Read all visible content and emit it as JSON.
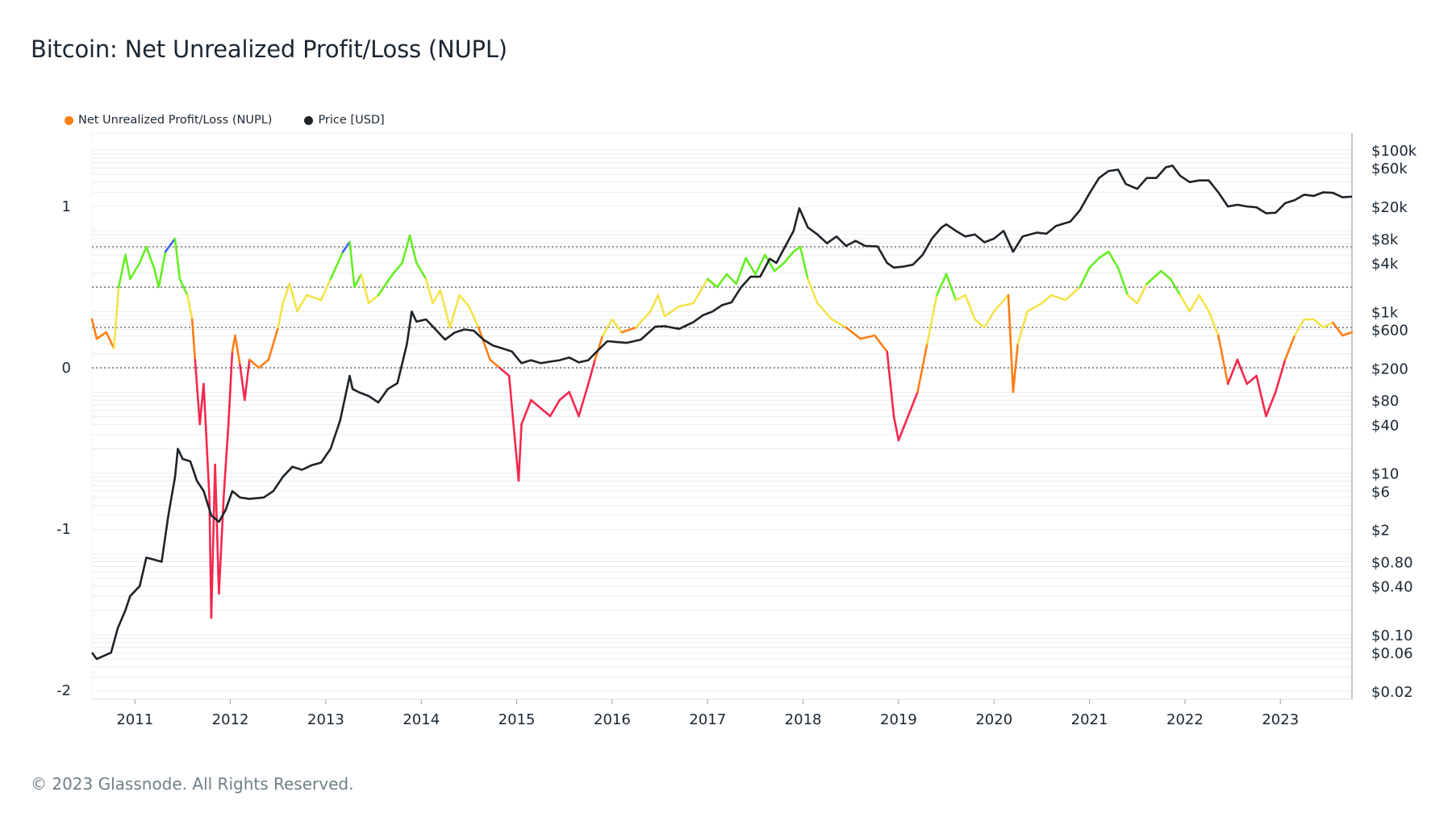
{
  "title": "Bitcoin: Net Unrealized Profit/Loss (NUPL)",
  "footer": "© 2023 Glassnode. All Rights Reserved.",
  "colors": {
    "capitulation": "#f5284d",
    "hope_fear": "#fd7e14",
    "optimism_anxiety": "#f4e34a",
    "belief_denial": "#66ee22",
    "euphoria_greed": "#3a64ec",
    "price": "#1e2328",
    "grid": "#e9ecef",
    "axis": "#9aa3aa"
  },
  "chart_data": {
    "type": "line",
    "title": "Bitcoin: Net Unrealized Profit/Loss (NUPL)",
    "legend": [
      {
        "label": "Net Unrealized Profit/Loss (NUPL)",
        "color": "#fd7e14"
      },
      {
        "label": "Price [USD]",
        "color": "#1e2328"
      }
    ],
    "x_ticks": [
      "2011",
      "2012",
      "2013",
      "2014",
      "2015",
      "2016",
      "2017",
      "2018",
      "2019",
      "2020",
      "2021",
      "2022",
      "2023"
    ],
    "x_range": [
      2010.55,
      2023.75
    ],
    "y_left": {
      "range": [
        -2,
        1.5
      ],
      "ticks": [
        1,
        0,
        -1,
        -2
      ],
      "tick_labels": [
        "1",
        "0",
        "-1",
        "-2"
      ]
    },
    "y_right_log": {
      "ticks": [
        100000,
        60000,
        20000,
        8000,
        4000,
        1000,
        600,
        200,
        80,
        40,
        10,
        6,
        2,
        0.8,
        0.4,
        0.1,
        0.06,
        0.02
      ],
      "tick_labels": [
        "$100k",
        "$60k",
        "$20k",
        "$8k",
        "$4k",
        "$1k",
        "$600",
        "$200",
        "$80",
        "$40",
        "$10",
        "$6",
        "$2",
        "$0.80",
        "$0.40",
        "$0.10",
        "$0.06",
        "$0.02"
      ]
    },
    "zone_thresholds": [
      0,
      0.25,
      0.5,
      0.75
    ],
    "series": [
      {
        "name": "Net Unrealized Profit/Loss (NUPL)",
        "axis": "left",
        "points": [
          [
            2010.55,
            0.3
          ],
          [
            2010.6,
            0.18
          ],
          [
            2010.7,
            0.22
          ],
          [
            2010.78,
            0.12
          ],
          [
            2010.83,
            0.5
          ],
          [
            2010.9,
            0.7
          ],
          [
            2010.95,
            0.55
          ],
          [
            2011.05,
            0.65
          ],
          [
            2011.12,
            0.75
          ],
          [
            2011.2,
            0.62
          ],
          [
            2011.25,
            0.5
          ],
          [
            2011.32,
            0.72
          ],
          [
            2011.42,
            0.8
          ],
          [
            2011.47,
            0.55
          ],
          [
            2011.55,
            0.45
          ],
          [
            2011.6,
            0.3
          ],
          [
            2011.63,
            0.05
          ],
          [
            2011.68,
            -0.35
          ],
          [
            2011.72,
            -0.1
          ],
          [
            2011.78,
            -0.8
          ],
          [
            2011.8,
            -1.55
          ],
          [
            2011.84,
            -0.6
          ],
          [
            2011.88,
            -1.4
          ],
          [
            2011.93,
            -0.8
          ],
          [
            2011.98,
            -0.35
          ],
          [
            2012.02,
            0.1
          ],
          [
            2012.05,
            0.2
          ],
          [
            2012.1,
            0.02
          ],
          [
            2012.15,
            -0.2
          ],
          [
            2012.2,
            0.05
          ],
          [
            2012.3,
            0.0
          ],
          [
            2012.4,
            0.05
          ],
          [
            2012.5,
            0.25
          ],
          [
            2012.55,
            0.4
          ],
          [
            2012.62,
            0.52
          ],
          [
            2012.7,
            0.35
          ],
          [
            2012.8,
            0.45
          ],
          [
            2012.95,
            0.42
          ],
          [
            2013.05,
            0.55
          ],
          [
            2013.18,
            0.72
          ],
          [
            2013.25,
            0.78
          ],
          [
            2013.3,
            0.5
          ],
          [
            2013.37,
            0.58
          ],
          [
            2013.45,
            0.4
          ],
          [
            2013.55,
            0.45
          ],
          [
            2013.7,
            0.58
          ],
          [
            2013.8,
            0.65
          ],
          [
            2013.88,
            0.82
          ],
          [
            2013.95,
            0.65
          ],
          [
            2014.05,
            0.55
          ],
          [
            2014.12,
            0.4
          ],
          [
            2014.2,
            0.48
          ],
          [
            2014.3,
            0.25
          ],
          [
            2014.4,
            0.45
          ],
          [
            2014.5,
            0.38
          ],
          [
            2014.6,
            0.25
          ],
          [
            2014.72,
            0.05
          ],
          [
            2014.82,
            0.0
          ],
          [
            2014.92,
            -0.05
          ],
          [
            2015.02,
            -0.7
          ],
          [
            2015.05,
            -0.35
          ],
          [
            2015.15,
            -0.2
          ],
          [
            2015.25,
            -0.25
          ],
          [
            2015.35,
            -0.3
          ],
          [
            2015.45,
            -0.2
          ],
          [
            2015.55,
            -0.15
          ],
          [
            2015.65,
            -0.3
          ],
          [
            2015.75,
            -0.1
          ],
          [
            2015.82,
            0.05
          ],
          [
            2015.9,
            0.2
          ],
          [
            2016.0,
            0.3
          ],
          [
            2016.1,
            0.22
          ],
          [
            2016.25,
            0.25
          ],
          [
            2016.4,
            0.35
          ],
          [
            2016.48,
            0.45
          ],
          [
            2016.55,
            0.32
          ],
          [
            2016.7,
            0.38
          ],
          [
            2016.85,
            0.4
          ],
          [
            2017.0,
            0.55
          ],
          [
            2017.1,
            0.5
          ],
          [
            2017.2,
            0.58
          ],
          [
            2017.3,
            0.52
          ],
          [
            2017.4,
            0.68
          ],
          [
            2017.5,
            0.58
          ],
          [
            2017.6,
            0.7
          ],
          [
            2017.7,
            0.6
          ],
          [
            2017.8,
            0.65
          ],
          [
            2017.9,
            0.72
          ],
          [
            2017.97,
            0.75
          ],
          [
            2018.05,
            0.55
          ],
          [
            2018.15,
            0.4
          ],
          [
            2018.3,
            0.3
          ],
          [
            2018.45,
            0.25
          ],
          [
            2018.6,
            0.18
          ],
          [
            2018.75,
            0.2
          ],
          [
            2018.88,
            0.1
          ],
          [
            2018.95,
            -0.3
          ],
          [
            2019.0,
            -0.45
          ],
          [
            2019.1,
            -0.3
          ],
          [
            2019.2,
            -0.15
          ],
          [
            2019.3,
            0.15
          ],
          [
            2019.4,
            0.45
          ],
          [
            2019.5,
            0.58
          ],
          [
            2019.6,
            0.42
          ],
          [
            2019.7,
            0.45
          ],
          [
            2019.8,
            0.3
          ],
          [
            2019.9,
            0.25
          ],
          [
            2020.0,
            0.35
          ],
          [
            2020.15,
            0.45
          ],
          [
            2020.2,
            -0.15
          ],
          [
            2020.25,
            0.15
          ],
          [
            2020.35,
            0.35
          ],
          [
            2020.5,
            0.4
          ],
          [
            2020.6,
            0.45
          ],
          [
            2020.75,
            0.42
          ],
          [
            2020.9,
            0.5
          ],
          [
            2021.0,
            0.62
          ],
          [
            2021.1,
            0.68
          ],
          [
            2021.2,
            0.72
          ],
          [
            2021.3,
            0.62
          ],
          [
            2021.4,
            0.45
          ],
          [
            2021.5,
            0.4
          ],
          [
            2021.6,
            0.52
          ],
          [
            2021.75,
            0.6
          ],
          [
            2021.85,
            0.55
          ],
          [
            2021.95,
            0.45
          ],
          [
            2022.05,
            0.35
          ],
          [
            2022.15,
            0.45
          ],
          [
            2022.25,
            0.35
          ],
          [
            2022.35,
            0.2
          ],
          [
            2022.45,
            -0.1
          ],
          [
            2022.55,
            0.05
          ],
          [
            2022.65,
            -0.1
          ],
          [
            2022.75,
            -0.05
          ],
          [
            2022.85,
            -0.3
          ],
          [
            2022.95,
            -0.15
          ],
          [
            2023.05,
            0.05
          ],
          [
            2023.15,
            0.2
          ],
          [
            2023.25,
            0.3
          ],
          [
            2023.35,
            0.3
          ],
          [
            2023.45,
            0.25
          ],
          [
            2023.55,
            0.28
          ],
          [
            2023.65,
            0.2
          ],
          [
            2023.75,
            0.22
          ]
        ]
      },
      {
        "name": "Price [USD]",
        "axis": "right",
        "points": [
          [
            2010.55,
            0.06
          ],
          [
            2010.6,
            0.05
          ],
          [
            2010.75,
            0.06
          ],
          [
            2010.82,
            0.12
          ],
          [
            2010.9,
            0.2
          ],
          [
            2010.95,
            0.3
          ],
          [
            2011.05,
            0.4
          ],
          [
            2011.12,
            0.9
          ],
          [
            2011.2,
            0.85
          ],
          [
            2011.28,
            0.8
          ],
          [
            2011.35,
            3
          ],
          [
            2011.42,
            9
          ],
          [
            2011.45,
            20
          ],
          [
            2011.5,
            15
          ],
          [
            2011.58,
            14
          ],
          [
            2011.65,
            8
          ],
          [
            2011.72,
            6
          ],
          [
            2011.8,
            3
          ],
          [
            2011.88,
            2.5
          ],
          [
            2011.95,
            3.5
          ],
          [
            2012.02,
            6
          ],
          [
            2012.1,
            5
          ],
          [
            2012.2,
            4.8
          ],
          [
            2012.35,
            5
          ],
          [
            2012.45,
            6
          ],
          [
            2012.55,
            9
          ],
          [
            2012.65,
            12
          ],
          [
            2012.75,
            11
          ],
          [
            2012.85,
            12.5
          ],
          [
            2012.95,
            13.5
          ],
          [
            2013.05,
            20
          ],
          [
            2013.15,
            45
          ],
          [
            2013.25,
            160
          ],
          [
            2013.28,
            110
          ],
          [
            2013.35,
            100
          ],
          [
            2013.45,
            90
          ],
          [
            2013.55,
            75
          ],
          [
            2013.65,
            110
          ],
          [
            2013.75,
            130
          ],
          [
            2013.85,
            400
          ],
          [
            2013.9,
            1000
          ],
          [
            2013.95,
            750
          ],
          [
            2014.05,
            800
          ],
          [
            2014.15,
            600
          ],
          [
            2014.25,
            450
          ],
          [
            2014.35,
            550
          ],
          [
            2014.45,
            600
          ],
          [
            2014.55,
            580
          ],
          [
            2014.65,
            450
          ],
          [
            2014.75,
            380
          ],
          [
            2014.85,
            350
          ],
          [
            2014.95,
            320
          ],
          [
            2015.05,
            230
          ],
          [
            2015.15,
            250
          ],
          [
            2015.25,
            230
          ],
          [
            2015.35,
            240
          ],
          [
            2015.45,
            250
          ],
          [
            2015.55,
            270
          ],
          [
            2015.65,
            235
          ],
          [
            2015.75,
            250
          ],
          [
            2015.85,
            330
          ],
          [
            2015.95,
            430
          ],
          [
            2016.05,
            420
          ],
          [
            2016.15,
            410
          ],
          [
            2016.3,
            450
          ],
          [
            2016.45,
            650
          ],
          [
            2016.55,
            660
          ],
          [
            2016.7,
            610
          ],
          [
            2016.85,
            740
          ],
          [
            2016.95,
            900
          ],
          [
            2017.05,
            1000
          ],
          [
            2017.15,
            1200
          ],
          [
            2017.25,
            1300
          ],
          [
            2017.35,
            2000
          ],
          [
            2017.45,
            2700
          ],
          [
            2017.55,
            2700
          ],
          [
            2017.65,
            4500
          ],
          [
            2017.72,
            4000
          ],
          [
            2017.8,
            6000
          ],
          [
            2017.9,
            10000
          ],
          [
            2017.96,
            19000
          ],
          [
            2018.05,
            11000
          ],
          [
            2018.15,
            9000
          ],
          [
            2018.25,
            7000
          ],
          [
            2018.35,
            8500
          ],
          [
            2018.45,
            6500
          ],
          [
            2018.55,
            7500
          ],
          [
            2018.65,
            6500
          ],
          [
            2018.78,
            6400
          ],
          [
            2018.88,
            4000
          ],
          [
            2018.95,
            3500
          ],
          [
            2019.05,
            3600
          ],
          [
            2019.15,
            3800
          ],
          [
            2019.25,
            5000
          ],
          [
            2019.35,
            8000
          ],
          [
            2019.45,
            11000
          ],
          [
            2019.5,
            12000
          ],
          [
            2019.6,
            10000
          ],
          [
            2019.7,
            8500
          ],
          [
            2019.8,
            9000
          ],
          [
            2019.9,
            7200
          ],
          [
            2020.0,
            8000
          ],
          [
            2020.1,
            10000
          ],
          [
            2020.2,
            5500
          ],
          [
            2020.3,
            8500
          ],
          [
            2020.45,
            9500
          ],
          [
            2020.55,
            9200
          ],
          [
            2020.65,
            11500
          ],
          [
            2020.8,
            13000
          ],
          [
            2020.9,
            18000
          ],
          [
            2021.0,
            29000
          ],
          [
            2021.1,
            45000
          ],
          [
            2021.2,
            55000
          ],
          [
            2021.3,
            57000
          ],
          [
            2021.38,
            38000
          ],
          [
            2021.5,
            33000
          ],
          [
            2021.6,
            45000
          ],
          [
            2021.7,
            45000
          ],
          [
            2021.8,
            61000
          ],
          [
            2021.87,
            64000
          ],
          [
            2021.95,
            48000
          ],
          [
            2022.05,
            40000
          ],
          [
            2022.15,
            42000
          ],
          [
            2022.25,
            42000
          ],
          [
            2022.35,
            30000
          ],
          [
            2022.45,
            20000
          ],
          [
            2022.55,
            21000
          ],
          [
            2022.65,
            20000
          ],
          [
            2022.75,
            19500
          ],
          [
            2022.85,
            16500
          ],
          [
            2022.95,
            16700
          ],
          [
            2023.05,
            22000
          ],
          [
            2023.15,
            24000
          ],
          [
            2023.25,
            28000
          ],
          [
            2023.35,
            27000
          ],
          [
            2023.45,
            30000
          ],
          [
            2023.55,
            29500
          ],
          [
            2023.65,
            26000
          ],
          [
            2023.75,
            26500
          ]
        ]
      }
    ]
  }
}
